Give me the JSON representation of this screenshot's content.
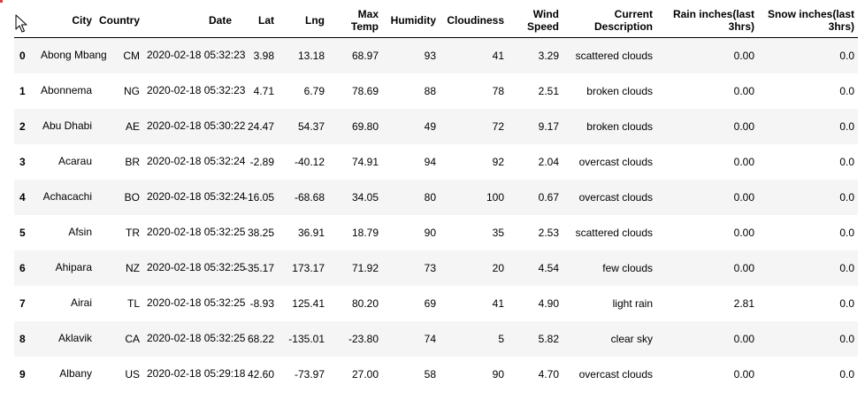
{
  "columns": [
    "",
    "City",
    "Country",
    "Date",
    "Lat",
    "Lng",
    "Max Temp",
    "Humidity",
    "Cloudiness",
    "Wind Speed",
    "Current Description",
    "Rain inches(last 3hrs)",
    "Snow inches(last 3hrs)"
  ],
  "rows": [
    {
      "index": "0",
      "city": "Abong Mbang",
      "country": "CM",
      "date": "2020-02-18 05:32:23",
      "lat": "3.98",
      "lng": "13.18",
      "max_temp": "68.97",
      "humidity": "93",
      "cloudiness": "41",
      "wind_speed": "3.29",
      "description": "scattered clouds",
      "rain": "0.00",
      "snow": "0.0"
    },
    {
      "index": "1",
      "city": "Abonnema",
      "country": "NG",
      "date": "2020-02-18 05:32:23",
      "lat": "4.71",
      "lng": "6.79",
      "max_temp": "78.69",
      "humidity": "88",
      "cloudiness": "78",
      "wind_speed": "2.51",
      "description": "broken clouds",
      "rain": "0.00",
      "snow": "0.0"
    },
    {
      "index": "2",
      "city": "Abu Dhabi",
      "country": "AE",
      "date": "2020-02-18 05:30:22",
      "lat": "24.47",
      "lng": "54.37",
      "max_temp": "69.80",
      "humidity": "49",
      "cloudiness": "72",
      "wind_speed": "9.17",
      "description": "broken clouds",
      "rain": "0.00",
      "snow": "0.0"
    },
    {
      "index": "3",
      "city": "Acarau",
      "country": "BR",
      "date": "2020-02-18 05:32:24",
      "lat": "-2.89",
      "lng": "-40.12",
      "max_temp": "74.91",
      "humidity": "94",
      "cloudiness": "92",
      "wind_speed": "2.04",
      "description": "overcast clouds",
      "rain": "0.00",
      "snow": "0.0"
    },
    {
      "index": "4",
      "city": "Achacachi",
      "country": "BO",
      "date": "2020-02-18 05:32:24",
      "lat": "-16.05",
      "lng": "-68.68",
      "max_temp": "34.05",
      "humidity": "80",
      "cloudiness": "100",
      "wind_speed": "0.67",
      "description": "overcast clouds",
      "rain": "0.00",
      "snow": "0.0"
    },
    {
      "index": "5",
      "city": "Afsin",
      "country": "TR",
      "date": "2020-02-18 05:32:25",
      "lat": "38.25",
      "lng": "36.91",
      "max_temp": "18.79",
      "humidity": "90",
      "cloudiness": "35",
      "wind_speed": "2.53",
      "description": "scattered clouds",
      "rain": "0.00",
      "snow": "0.0"
    },
    {
      "index": "6",
      "city": "Ahipara",
      "country": "NZ",
      "date": "2020-02-18 05:32:25",
      "lat": "-35.17",
      "lng": "173.17",
      "max_temp": "71.92",
      "humidity": "73",
      "cloudiness": "20",
      "wind_speed": "4.54",
      "description": "few clouds",
      "rain": "0.00",
      "snow": "0.0"
    },
    {
      "index": "7",
      "city": "Airai",
      "country": "TL",
      "date": "2020-02-18 05:32:25",
      "lat": "-8.93",
      "lng": "125.41",
      "max_temp": "80.20",
      "humidity": "69",
      "cloudiness": "41",
      "wind_speed": "4.90",
      "description": "light rain",
      "rain": "2.81",
      "snow": "0.0"
    },
    {
      "index": "8",
      "city": "Aklavik",
      "country": "CA",
      "date": "2020-02-18 05:32:25",
      "lat": "68.22",
      "lng": "-135.01",
      "max_temp": "-23.80",
      "humidity": "74",
      "cloudiness": "5",
      "wind_speed": "5.82",
      "description": "clear sky",
      "rain": "0.00",
      "snow": "0.0"
    },
    {
      "index": "9",
      "city": "Albany",
      "country": "US",
      "date": "2020-02-18 05:29:18",
      "lat": "42.60",
      "lng": "-73.97",
      "max_temp": "27.00",
      "humidity": "58",
      "cloudiness": "90",
      "wind_speed": "4.70",
      "description": "overcast clouds",
      "rain": "0.00",
      "snow": "0.0"
    }
  ],
  "icons": {
    "cursor": "mouse-pointer-icon"
  },
  "colors": {
    "stripe": "#f5f5f5",
    "header_border": "#000000",
    "marker": "#e53935"
  }
}
